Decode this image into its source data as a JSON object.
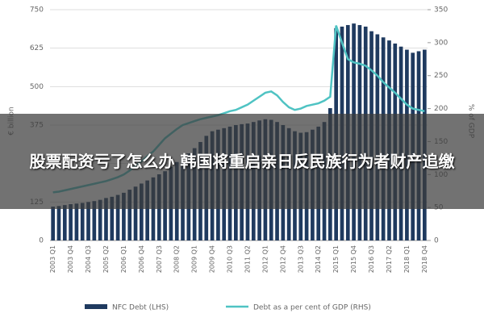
{
  "chart_data": {
    "type": "bar_line",
    "overlay_title": "股票配资亏了怎么办 韩国将重启亲日反民族行为者财产追缴",
    "ylabel": "€ billion",
    "y2label": "% of GDP",
    "categories": [
      "2003 Q1",
      null,
      null,
      "2003 Q4",
      null,
      null,
      "2004 Q3",
      null,
      null,
      "2005 Q2",
      null,
      null,
      "2006 Q1",
      null,
      null,
      "2006 Q4",
      null,
      null,
      "2007 Q3",
      null,
      null,
      "2008 Q2",
      null,
      null,
      "2009 Q1",
      null,
      null,
      "2009 Q4",
      null,
      null,
      "2010 Q3",
      null,
      null,
      "2011 Q2",
      null,
      null,
      "2012 Q1",
      null,
      null,
      "2012 Q4",
      null,
      null,
      "2013 Q3",
      null,
      null,
      "2014 Q2",
      null,
      null,
      "2015 Q1",
      null,
      null,
      "2015 Q4",
      null,
      null,
      "2016 Q3",
      null,
      null,
      "2017 Q2",
      null,
      null,
      "2018 Q1",
      null,
      null,
      "2018 Q4"
    ],
    "series": [
      {
        "name": "NFC Debt (LHS)",
        "color": "#1f3a5f",
        "kind": "bar",
        "values": [
          110,
          112,
          115,
          118,
          120,
          122,
          125,
          128,
          132,
          138,
          142,
          148,
          155,
          165,
          175,
          185,
          195,
          205,
          215,
          225,
          240,
          255,
          270,
          283,
          300,
          320,
          340,
          355,
          360,
          365,
          370,
          375,
          378,
          380,
          385,
          390,
          394,
          392,
          385,
          375,
          365,
          355,
          350,
          352,
          360,
          370,
          385,
          430,
          690,
          695,
          700,
          705,
          700,
          695,
          680,
          670,
          660,
          650,
          640,
          630,
          620,
          610,
          615,
          620
        ]
      },
      {
        "name": "Debt as a per cent of GDP (RHS)",
        "color": "#4fc3c3",
        "kind": "line",
        "axis": "y2",
        "values": [
          73,
          74,
          76,
          78,
          80,
          82,
          84,
          86,
          88,
          90,
          93,
          96,
          100,
          106,
          113,
          120,
          128,
          135,
          145,
          155,
          162,
          169,
          175,
          178,
          181,
          184,
          186,
          188,
          190,
          193,
          196,
          198,
          202,
          206,
          212,
          218,
          224,
          226,
          220,
          210,
          202,
          198,
          200,
          204,
          206,
          208,
          212,
          218,
          326,
          300,
          275,
          270,
          268,
          265,
          258,
          250,
          240,
          232,
          224,
          215,
          206,
          200,
          198,
          196
        ]
      }
    ],
    "ylim": [
      0,
      750
    ],
    "yticks": [
      0,
      125,
      250,
      375,
      500,
      625,
      750
    ],
    "y2lim": [
      0,
      350
    ],
    "y2ticks": [
      0,
      50,
      100,
      150,
      200,
      250,
      300,
      350
    ]
  }
}
